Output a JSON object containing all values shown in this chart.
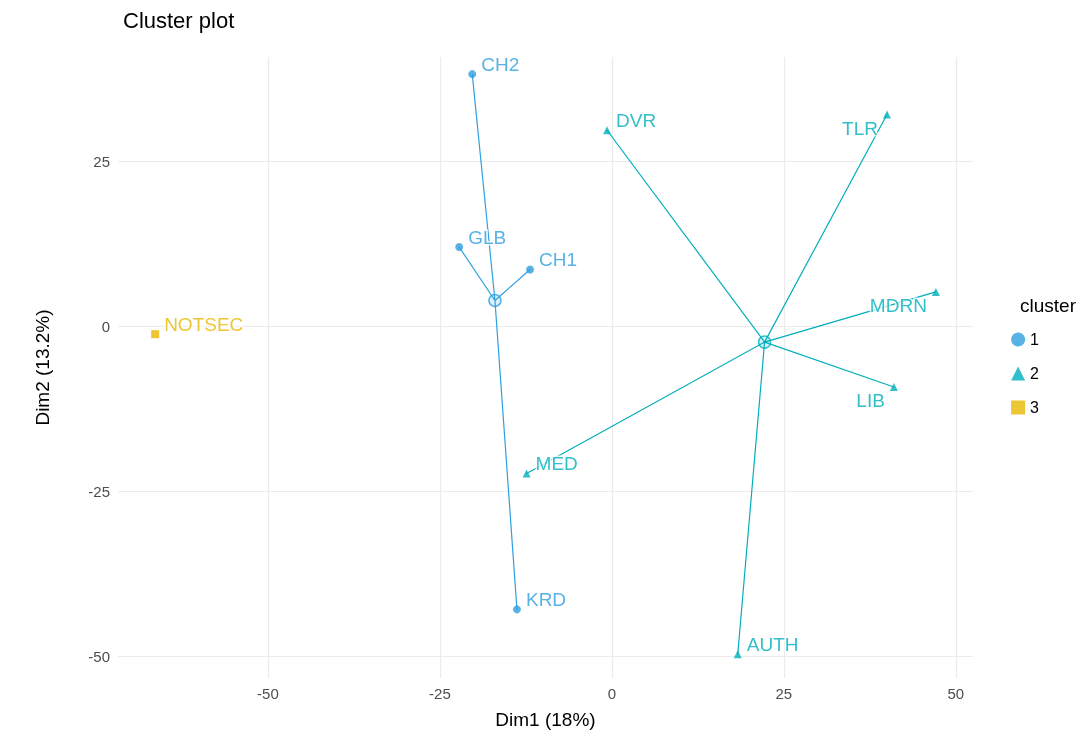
{
  "chart_data": {
    "type": "scatter",
    "title": "Cluster plot",
    "xlabel": "Dim1 (18%)",
    "ylabel": "Dim2 (13.2%)",
    "legend_title": "cluster",
    "legend": "right",
    "grid": true,
    "xlim": [
      -71.8,
      52.5
    ],
    "ylim": [
      -53.3,
      40.8
    ],
    "xticks": [
      -50,
      -25,
      0,
      25,
      50
    ],
    "yticks": [
      -50,
      -25,
      0,
      25
    ],
    "series": [
      {
        "type": "line",
        "color": "#2e9fdf",
        "marker": "none",
        "x": [
          -17.0,
          -20.3,
          -17.0,
          -22.2,
          -17.0,
          -11.9,
          -17.0,
          -13.8
        ],
        "values": [
          3.9,
          38.2,
          3.9,
          12.0,
          3.9,
          8.6,
          3.9,
          -42.9
        ]
      },
      {
        "type": "line",
        "color": "#00afbb",
        "marker": "none",
        "x": [
          22.2,
          -0.7,
          22.2,
          40.0,
          22.2,
          47.1,
          22.2,
          41.0,
          22.2,
          -12.4,
          22.2,
          18.3
        ],
        "values": [
          -2.4,
          29.7,
          -2.4,
          32.1,
          -2.4,
          5.2,
          -2.4,
          -9.2,
          -2.4,
          -22.3,
          -2.4,
          -49.7
        ]
      },
      {
        "color": "#2e9fdf",
        "marker": "circle",
        "x": [
          -17.0
        ],
        "values": [
          3.9
        ]
      },
      {
        "color": "#00afbb",
        "marker": "circle",
        "x": [
          22.2
        ],
        "values": [
          -2.4
        ]
      },
      {
        "name": "1",
        "color": "#2e9fdf",
        "marker": "circle",
        "x": [
          -20.3,
          -22.2,
          -11.9,
          -13.8
        ],
        "values": [
          38.2,
          12.0,
          8.6,
          -42.9
        ],
        "value_labels": [
          "CH2",
          "GLB",
          "CH1",
          "KRD"
        ]
      },
      {
        "name": "2",
        "color": "#00afbb",
        "marker": "triangle",
        "x": [
          -0.7,
          40.0,
          47.1,
          41.0,
          -12.4,
          18.3
        ],
        "values": [
          29.7,
          32.1,
          5.2,
          -9.2,
          -22.3,
          -49.7
        ],
        "value_labels": [
          "DVR",
          "TLR",
          "MDRN",
          "LIB",
          "MED",
          "AUTH"
        ]
      },
      {
        "name": "3",
        "color": "#e7b800",
        "marker": "square",
        "x": [
          -66.4
        ],
        "values": [
          -1.2
        ],
        "value_labels": [
          "NOTSEC"
        ]
      }
    ]
  }
}
